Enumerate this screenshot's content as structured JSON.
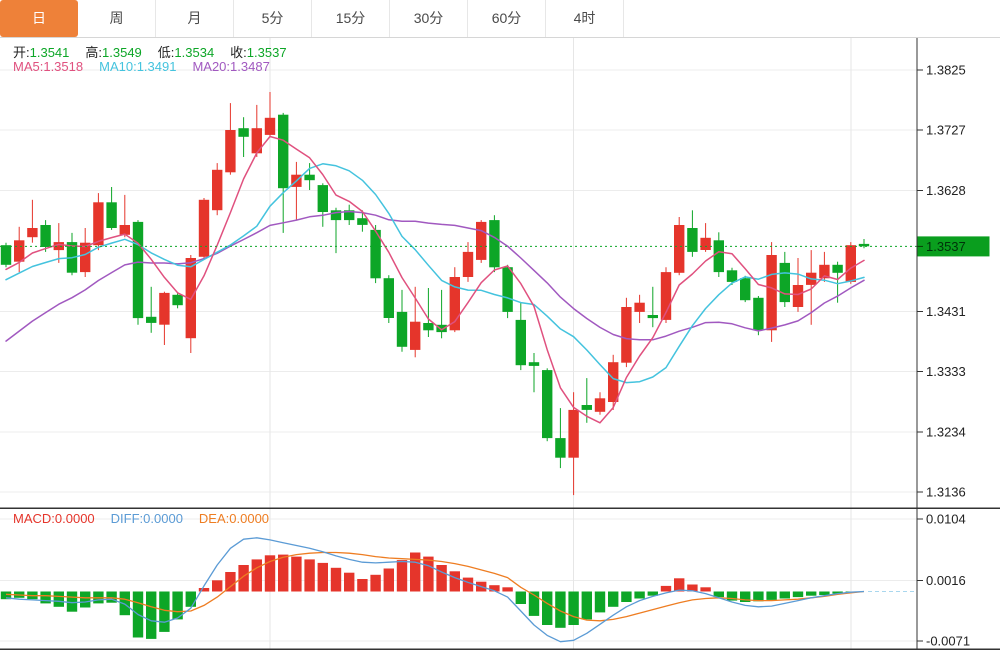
{
  "tabs": [
    {
      "key": "day",
      "label": "日",
      "active": true
    },
    {
      "key": "week",
      "label": "周",
      "active": false
    },
    {
      "key": "month",
      "label": "月",
      "active": false
    },
    {
      "key": "5min",
      "label": "5分",
      "active": false
    },
    {
      "key": "15min",
      "label": "15分",
      "active": false
    },
    {
      "key": "30min",
      "label": "30分",
      "active": false
    },
    {
      "key": "60min",
      "label": "60分",
      "active": false
    },
    {
      "key": "4hour",
      "label": "4时",
      "active": false
    }
  ],
  "legend": {
    "ohlc": [
      {
        "label": "开:",
        "value": "1.3541"
      },
      {
        "label": "高:",
        "value": "1.3549"
      },
      {
        "label": "低:",
        "value": "1.3534"
      },
      {
        "label": "收:",
        "value": "1.3537"
      }
    ],
    "ma": [
      {
        "label": "MA5:",
        "value": "1.3518",
        "color": "#e0517f"
      },
      {
        "label": "MA10:",
        "value": "1.3491",
        "color": "#44c3de"
      },
      {
        "label": "MA20:",
        "value": "1.3487",
        "color": "#a159c0"
      }
    ],
    "macd": [
      {
        "label": "MACD:",
        "value": "0.0000",
        "color": "#e5352b"
      },
      {
        "label": "DIFF:",
        "value": "0.0000",
        "color": "#5b9bd5"
      },
      {
        "label": "DEA:",
        "value": "0.0000",
        "color": "#ee7d22"
      }
    ]
  },
  "colors": {
    "up": "#e5352b",
    "down": "#0da627",
    "ohlc_value": "#0da627",
    "ma5": "#e0517f",
    "ma10": "#44c3de",
    "ma20": "#a159c0",
    "diff": "#5b9bd5",
    "dea": "#ee7d22",
    "zero_dash": "#a9d7ee",
    "grid": "#ececec",
    "vgrid": "#e6e6e6",
    "border": "#333333",
    "tick_text": "#222222",
    "tab_active_bg": "#ee8139",
    "price_line": "#0da627",
    "price_badge_bg": "#0a9e1e",
    "price_badge_text": "#00320a"
  },
  "chart_data": {
    "type": "candlestick-with-macd",
    "timeframe": "日",
    "price_ticks": [
      1.3825,
      1.3727,
      1.3628,
      1.3431,
      1.3333,
      1.3234,
      1.3136
    ],
    "current_price": 1.3537,
    "macd_ticks": [
      0.0104,
      0.0016,
      -0.0071
    ],
    "v_grid_candle_indices": [
      20,
      43,
      64
    ],
    "candles_ohlc": [
      [
        1.3539,
        1.3543,
        1.3503,
        1.3507
      ],
      [
        1.3512,
        1.3569,
        1.3495,
        1.3547
      ],
      [
        1.3552,
        1.3613,
        1.3543,
        1.3567
      ],
      [
        1.3572,
        1.358,
        1.3528,
        1.3536
      ],
      [
        1.3531,
        1.3575,
        1.351,
        1.3544
      ],
      [
        1.3544,
        1.3559,
        1.349,
        1.3494
      ],
      [
        1.3495,
        1.3567,
        1.3487,
        1.3543
      ],
      [
        1.3539,
        1.3624,
        1.3531,
        1.3609
      ],
      [
        1.3609,
        1.3634,
        1.3564,
        1.3567
      ],
      [
        1.3556,
        1.3621,
        1.3552,
        1.3572
      ],
      [
        1.3577,
        1.358,
        1.3409,
        1.342
      ],
      [
        1.3422,
        1.3471,
        1.3396,
        1.3412
      ],
      [
        1.3409,
        1.3463,
        1.3376,
        1.3461
      ],
      [
        1.3458,
        1.3461,
        1.3436,
        1.3441
      ],
      [
        1.3387,
        1.3523,
        1.3363,
        1.3518
      ],
      [
        1.352,
        1.3616,
        1.3515,
        1.3613
      ],
      [
        1.3596,
        1.3673,
        1.3588,
        1.3662
      ],
      [
        1.3658,
        1.3771,
        1.3654,
        1.3727
      ],
      [
        1.373,
        1.3748,
        1.3683,
        1.3716
      ],
      [
        1.3689,
        1.3768,
        1.3683,
        1.373
      ],
      [
        1.3719,
        1.3789,
        1.3716,
        1.3747
      ],
      [
        1.3752,
        1.3755,
        1.3559,
        1.3632
      ],
      [
        1.3634,
        1.3675,
        1.358,
        1.3654
      ],
      [
        1.3654,
        1.3673,
        1.3629,
        1.3645
      ],
      [
        1.3637,
        1.364,
        1.3569,
        1.3593
      ],
      [
        1.3596,
        1.36,
        1.3526,
        1.358
      ],
      [
        1.3596,
        1.3605,
        1.3572,
        1.358
      ],
      [
        1.3583,
        1.3596,
        1.3561,
        1.3572
      ],
      [
        1.3564,
        1.3572,
        1.3477,
        1.3485
      ],
      [
        1.3485,
        1.349,
        1.3412,
        1.342
      ],
      [
        1.343,
        1.3466,
        1.3365,
        1.3373
      ],
      [
        1.3368,
        1.3471,
        1.3356,
        1.3414
      ],
      [
        1.3412,
        1.3469,
        1.3389,
        1.34
      ],
      [
        1.3409,
        1.3466,
        1.3387,
        1.3397
      ],
      [
        1.34,
        1.3503,
        1.3397,
        1.3487
      ],
      [
        1.3487,
        1.3544,
        1.3479,
        1.3528
      ],
      [
        1.3515,
        1.358,
        1.351,
        1.3577
      ],
      [
        1.358,
        1.3588,
        1.3495,
        1.3503
      ],
      [
        1.3503,
        1.3507,
        1.342,
        1.343
      ],
      [
        1.3417,
        1.3445,
        1.3335,
        1.3343
      ],
      [
        1.3348,
        1.3363,
        1.3299,
        1.3342
      ],
      [
        1.3335,
        1.3338,
        1.3219,
        1.3224
      ],
      [
        1.3224,
        1.3273,
        1.3175,
        1.3192
      ],
      [
        1.3192,
        1.3299,
        1.3131,
        1.327
      ],
      [
        1.3278,
        1.3322,
        1.3249,
        1.327
      ],
      [
        1.3267,
        1.3299,
        1.3262,
        1.3289
      ],
      [
        1.3283,
        1.336,
        1.327,
        1.3348
      ],
      [
        1.3347,
        1.3453,
        1.334,
        1.3438
      ],
      [
        1.343,
        1.3458,
        1.3412,
        1.3445
      ],
      [
        1.3425,
        1.3471,
        1.3405,
        1.342
      ],
      [
        1.3417,
        1.3503,
        1.3412,
        1.3495
      ],
      [
        1.3494,
        1.3585,
        1.349,
        1.3572
      ],
      [
        1.3567,
        1.3596,
        1.352,
        1.3528
      ],
      [
        1.3531,
        1.3575,
        1.3528,
        1.3551
      ],
      [
        1.3547,
        1.356,
        1.3487,
        1.3495
      ],
      [
        1.3498,
        1.3502,
        1.3474,
        1.3479
      ],
      [
        1.3485,
        1.3489,
        1.3446,
        1.3449
      ],
      [
        1.3453,
        1.3456,
        1.3392,
        1.34
      ],
      [
        1.34,
        1.3544,
        1.3381,
        1.3523
      ],
      [
        1.351,
        1.3528,
        1.3438,
        1.3446
      ],
      [
        1.3438,
        1.3518,
        1.343,
        1.3474
      ],
      [
        1.3474,
        1.3531,
        1.3409,
        1.3494
      ],
      [
        1.3485,
        1.3528,
        1.3479,
        1.3507
      ],
      [
        1.3507,
        1.3512,
        1.3445,
        1.3494
      ],
      [
        1.3479,
        1.3544,
        1.3476,
        1.3539
      ],
      [
        1.3541,
        1.3549,
        1.3534,
        1.3537
      ]
    ],
    "ma_periods": [
      5,
      10,
      20
    ],
    "ma_seed": [
      1.322,
      1.324,
      1.326,
      1.327,
      1.328,
      1.329,
      1.33,
      1.331,
      1.332,
      1.333,
      1.344,
      1.346,
      1.347,
      1.348,
      1.348,
      1.349,
      1.349,
      1.35,
      1.351
    ],
    "macd": {
      "hist": [
        -0.0011,
        -0.0009,
        -0.0011,
        -0.0017,
        -0.0022,
        -0.0029,
        -0.0023,
        -0.0017,
        -0.0016,
        -0.0034,
        -0.0066,
        -0.0068,
        -0.0058,
        -0.004,
        -0.0022,
        0.0005,
        0.0016,
        0.0028,
        0.0038,
        0.0046,
        0.0052,
        0.0053,
        0.005,
        0.0046,
        0.0041,
        0.0034,
        0.0027,
        0.0018,
        0.0024,
        0.0033,
        0.0045,
        0.0056,
        0.005,
        0.0038,
        0.0029,
        0.002,
        0.0014,
        0.0009,
        0.0006,
        -0.0018,
        -0.0035,
        -0.0048,
        -0.0052,
        -0.0048,
        -0.004,
        -0.003,
        -0.0022,
        -0.0015,
        -0.001,
        -0.0006,
        0.0008,
        0.0019,
        0.001,
        0.0006,
        -0.0008,
        -0.0013,
        -0.0015,
        -0.0014,
        -0.0012,
        -0.001,
        -0.0008,
        -0.0006,
        -0.0005,
        -0.0003,
        -0.0001,
        0.0
      ],
      "diff": [
        -0.0009,
        -0.0011,
        -0.0012,
        -0.0013,
        -0.0014,
        -0.0016,
        -0.0015,
        -0.0012,
        -0.0011,
        -0.0018,
        -0.0033,
        -0.0042,
        -0.0044,
        -0.0038,
        -0.0024,
        0.0008,
        0.0038,
        0.0062,
        0.0075,
        0.0077,
        0.0074,
        0.007,
        0.0066,
        0.0062,
        0.0057,
        0.0051,
        0.0046,
        0.0042,
        0.0041,
        0.0042,
        0.0043,
        0.0042,
        0.0037,
        0.0028,
        0.002,
        0.0013,
        0.0007,
        0.0001,
        -0.0008,
        -0.0028,
        -0.0048,
        -0.0063,
        -0.0072,
        -0.007,
        -0.006,
        -0.0047,
        -0.0034,
        -0.0022,
        -0.0013,
        -0.0007,
        -0.0002,
        0.0002,
        0.0001,
        -0.0003,
        -0.0009,
        -0.0015,
        -0.002,
        -0.0022,
        -0.0021,
        -0.0017,
        -0.0013,
        -0.0009,
        -0.0006,
        -0.0003,
        -0.0001,
        0.0
      ],
      "dea": [
        -0.0004,
        -0.0005,
        -0.0006,
        -0.0006,
        -0.0007,
        -0.0008,
        -0.0009,
        -0.0009,
        -0.0009,
        -0.0011,
        -0.0016,
        -0.0022,
        -0.0027,
        -0.0029,
        -0.0028,
        -0.002,
        -0.0008,
        0.0007,
        0.0022,
        0.0034,
        0.0043,
        0.0049,
        0.0053,
        0.0055,
        0.0056,
        0.0056,
        0.0055,
        0.0053,
        0.005,
        0.0048,
        0.0047,
        0.0046,
        0.0045,
        0.0043,
        0.004,
        0.0036,
        0.0031,
        0.0026,
        0.002,
        0.0006,
        -0.0005,
        -0.0017,
        -0.0028,
        -0.0036,
        -0.0041,
        -0.0042,
        -0.004,
        -0.0036,
        -0.0031,
        -0.0026,
        -0.0021,
        -0.0016,
        -0.0012,
        -0.001,
        -0.0009,
        -0.001,
        -0.0012,
        -0.0013,
        -0.0013,
        -0.0012,
        -0.0011,
        -0.0009,
        -0.0007,
        -0.0004,
        -0.0002,
        0.0
      ]
    }
  }
}
